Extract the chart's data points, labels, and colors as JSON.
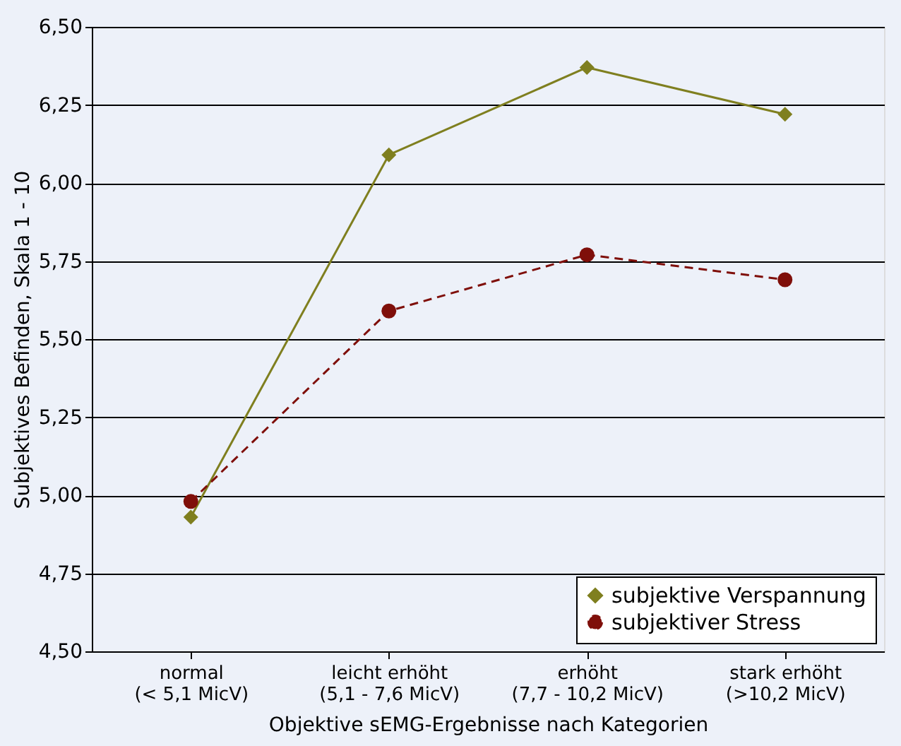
{
  "chart_data": {
    "type": "line",
    "xlabel": "Objektive sEMG-Ergebnisse nach Kategorien",
    "ylabel": "Subjektives Befinden, Skala 1 - 10",
    "categories": [
      "normal\n(< 5,1 MicV)",
      "leicht erhöht\n(5,1 - 7,6 MicV)",
      "erhöht\n(7,7 - 10,2 MicV)",
      "stark erhöht\n(>10,2 MicV)"
    ],
    "series": [
      {
        "name": "subjektive Verspannung",
        "color": "#7f7f1f",
        "marker": "diamond",
        "line_style": "solid",
        "values": [
          4.93,
          6.09,
          6.37,
          6.22
        ]
      },
      {
        "name": "subjektiver Stress",
        "color": "#7f0f0a",
        "marker": "circle",
        "line_style": "dashed",
        "values": [
          4.98,
          5.59,
          5.77,
          5.69
        ]
      }
    ],
    "ylim": [
      4.5,
      6.5
    ],
    "yticks": [
      {
        "value": 4.5,
        "label": "4,50"
      },
      {
        "value": 4.75,
        "label": "4,75"
      },
      {
        "value": 5.0,
        "label": "5,00"
      },
      {
        "value": 5.25,
        "label": "5,25"
      },
      {
        "value": 5.5,
        "label": "5,50"
      },
      {
        "value": 5.75,
        "label": "5,75"
      },
      {
        "value": 6.0,
        "label": "6,00"
      },
      {
        "value": 6.25,
        "label": "6,25"
      },
      {
        "value": 6.5,
        "label": "6,50"
      }
    ],
    "grid": "y",
    "legend": "bottom right"
  }
}
